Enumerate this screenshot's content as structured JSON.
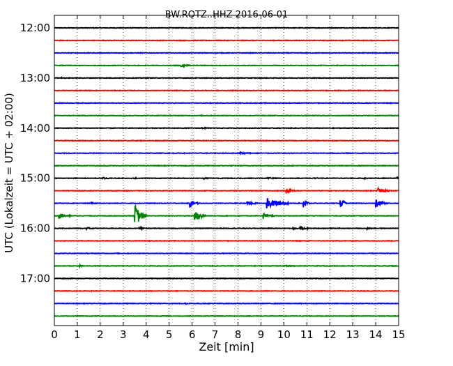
{
  "chart_data": {
    "type": "line",
    "title": "BW.ROTZ..HHZ 2016-06-01",
    "xlabel": "Zeit  [min]",
    "ylabel": "UTC (Lokalzeit = UTC + 02:00)",
    "xlim": [
      0,
      15
    ],
    "x_ticks": [
      "0",
      "1",
      "2",
      "3",
      "4",
      "5",
      "6",
      "7",
      "8",
      "9",
      "10",
      "11",
      "12",
      "13",
      "14",
      "15"
    ],
    "y_hour_labels": [
      "12:00",
      "13:00",
      "14:00",
      "15:00",
      "16:00",
      "17:00"
    ],
    "trace_start_times": [
      "12:00",
      "12:15",
      "12:30",
      "12:45",
      "13:00",
      "13:15",
      "13:30",
      "13:45",
      "14:00",
      "14:15",
      "14:30",
      "14:45",
      "15:00",
      "15:15",
      "15:30",
      "15:45",
      "16:00",
      "16:15",
      "16:30",
      "16:45",
      "17:00",
      "17:15",
      "17:30",
      "17:45"
    ],
    "trace_colors": [
      "#000000",
      "#ff0000",
      "#0000ff",
      "#008000"
    ],
    "grid": "vertical dotted",
    "events": [
      {
        "trace": 0,
        "t": 3.0,
        "amp": 0.08,
        "dur": 0.25
      },
      {
        "trace": 3,
        "t": 5.5,
        "amp": 0.25,
        "dur": 0.5
      },
      {
        "trace": 4,
        "t": 0.3,
        "amp": 0.08,
        "dur": 0.3
      },
      {
        "trace": 7,
        "t": 3.0,
        "amp": 0.1,
        "dur": 0.3
      },
      {
        "trace": 8,
        "t": 6.4,
        "amp": 0.12,
        "dur": 0.5
      },
      {
        "trace": 10,
        "t": 8.1,
        "amp": 0.28,
        "dur": 0.5
      },
      {
        "trace": 12,
        "t": 2.1,
        "amp": 0.15,
        "dur": 0.5
      },
      {
        "trace": 12,
        "t": 3.5,
        "amp": 0.3,
        "dur": 0.1
      },
      {
        "trace": 12,
        "t": 6.5,
        "amp": 0.15,
        "dur": 0.3
      },
      {
        "trace": 12,
        "t": 9.3,
        "amp": 0.12,
        "dur": 0.5
      },
      {
        "trace": 12,
        "t": 11.3,
        "amp": 0.1,
        "dur": 0.3
      },
      {
        "trace": 12,
        "t": 13.4,
        "amp": 0.12,
        "dur": 0.4
      },
      {
        "trace": 12,
        "t": 14.9,
        "amp": 0.15,
        "dur": 0.2
      },
      {
        "trace": 13,
        "t": 6.5,
        "amp": 0.1,
        "dur": 0.3
      },
      {
        "trace": 13,
        "t": 10.1,
        "amp": 0.4,
        "dur": 0.5
      },
      {
        "trace": 13,
        "t": 14.1,
        "amp": 0.6,
        "dur": 0.5
      },
      {
        "trace": 14,
        "t": 1.6,
        "amp": 0.15,
        "dur": 0.3
      },
      {
        "trace": 14,
        "t": 2.8,
        "amp": 0.12,
        "dur": 0.3
      },
      {
        "trace": 14,
        "t": 5.9,
        "amp": 0.7,
        "dur": 0.4
      },
      {
        "trace": 14,
        "t": 8.4,
        "amp": 0.35,
        "dur": 0.5
      },
      {
        "trace": 14,
        "t": 9.25,
        "amp": 0.9,
        "dur": 1.0
      },
      {
        "trace": 14,
        "t": 10.85,
        "amp": 0.8,
        "dur": 0.3
      },
      {
        "trace": 14,
        "t": 12.45,
        "amp": 0.9,
        "dur": 0.3
      },
      {
        "trace": 14,
        "t": 14.0,
        "amp": 0.85,
        "dur": 0.5
      },
      {
        "trace": 15,
        "t": 0.2,
        "amp": 0.6,
        "dur": 0.5
      },
      {
        "trace": 15,
        "t": 3.5,
        "amp": 2.0,
        "dur": 0.5
      },
      {
        "trace": 15,
        "t": 6.1,
        "amp": 1.2,
        "dur": 0.5
      },
      {
        "trace": 15,
        "t": 9.1,
        "amp": 0.5,
        "dur": 0.5
      },
      {
        "trace": 16,
        "t": 1.4,
        "amp": 0.2,
        "dur": 0.5
      },
      {
        "trace": 16,
        "t": 3.7,
        "amp": 0.2,
        "dur": 0.3
      },
      {
        "trace": 16,
        "t": 10.4,
        "amp": 0.2,
        "dur": 0.3
      },
      {
        "trace": 16,
        "t": 10.7,
        "amp": 0.3,
        "dur": 0.5
      },
      {
        "trace": 16,
        "t": 13.6,
        "amp": 0.2,
        "dur": 0.3
      },
      {
        "trace": 19,
        "t": 1.1,
        "amp": 0.2,
        "dur": 0.3
      },
      {
        "trace": 19,
        "t": 10.0,
        "amp": 0.15,
        "dur": 0.6
      },
      {
        "trace": 22,
        "t": 5.7,
        "amp": 0.3,
        "dur": 0.1
      }
    ]
  }
}
